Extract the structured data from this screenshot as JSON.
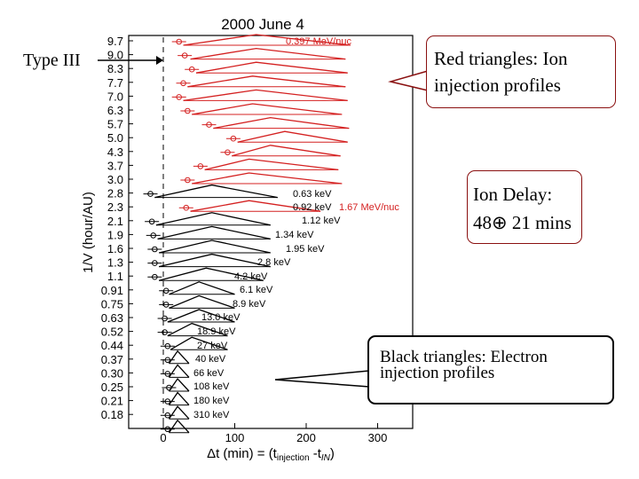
{
  "chart_data": {
    "type": "stacked-velocity-dispersion",
    "title": "2000 June 4",
    "ylabel": "1/V (hour/AU)",
    "xlabel_main": "Δt (min) = (t",
    "xlabel_sub1": "injection",
    "xlabel_mid": " -t",
    "xlabel_sub2": "IN",
    "xlabel_end": ")",
    "xlim": [
      -40,
      350
    ],
    "xticks": [
      0,
      100,
      200,
      300
    ],
    "yticks": [
      "9.7",
      "9.0",
      "8.3",
      "7.7",
      "7.0",
      "6.3",
      "5.7",
      "5.0",
      "4.3",
      "3.7",
      "3.0",
      "2.8",
      "2.3",
      "2.1",
      "1.9",
      "1.6",
      "1.3",
      "1.1",
      "0.91",
      "0.75",
      "0.63",
      "0.52",
      "0.44",
      "0.37",
      "0.30",
      "0.25",
      "0.21",
      "0.18"
    ],
    "channels": [
      {
        "type": "ion",
        "marker_x": 22,
        "triangle_start": 28,
        "peak": 130,
        "end": 262,
        "label": "0.397 MeV/nuc"
      },
      {
        "type": "ion",
        "marker_x": 30,
        "triangle_start": 38,
        "peak": 130,
        "end": 255
      },
      {
        "type": "ion",
        "marker_x": 40,
        "triangle_start": 46,
        "peak": 130,
        "end": 258
      },
      {
        "type": "ion",
        "marker_x": 28,
        "triangle_start": 34,
        "peak": 125,
        "end": 255
      },
      {
        "type": "ion",
        "marker_x": 22,
        "triangle_start": 28,
        "peak": 130,
        "end": 258
      },
      {
        "type": "ion",
        "marker_x": 34,
        "triangle_start": 40,
        "peak": 125,
        "end": 250
      },
      {
        "type": "ion",
        "marker_x": 64,
        "triangle_start": 70,
        "peak": 150,
        "end": 260
      },
      {
        "type": "ion",
        "marker_x": 98,
        "triangle_start": 104,
        "peak": 170,
        "end": 258
      },
      {
        "type": "ion",
        "marker_x": 90,
        "triangle_start": 96,
        "peak": 150,
        "end": 248
      },
      {
        "type": "ion",
        "marker_x": 52,
        "triangle_start": 58,
        "peak": 120,
        "end": 245
      },
      {
        "type": "ion",
        "marker_x": 34,
        "triangle_start": 40,
        "peak": 120,
        "end": 250
      },
      {
        "type": "electron",
        "marker_x": -18,
        "triangle_start": -12,
        "peak": 68,
        "end": 160,
        "label": "0.63 keV"
      },
      {
        "type": "ion",
        "marker_x": 32,
        "triangle_start": 38,
        "peak": 120,
        "end": 220,
        "label": "1.67 MeV/nuc"
      },
      {
        "type": "electron",
        "marker_x": -16,
        "triangle_start": -10,
        "peak": 68,
        "end": 150,
        "label": "0.92 keV"
      },
      {
        "type": "electron",
        "marker_x": -14,
        "triangle_start": -8,
        "peak": 68,
        "end": 150,
        "label": "1.12 keV"
      },
      {
        "type": "electron",
        "marker_x": -12,
        "triangle_start": -6,
        "peak": 68,
        "end": 150,
        "label": "1.34 keV"
      },
      {
        "type": "electron",
        "marker_x": -12,
        "triangle_start": -6,
        "peak": 68,
        "end": 150,
        "label": "1.95 keV"
      },
      {
        "type": "electron",
        "marker_x": -12,
        "triangle_start": -6,
        "peak": 60,
        "end": 140,
        "label": "2.8 keV"
      },
      {
        "type": "electron",
        "marker_x": 4,
        "triangle_start": 8,
        "peak": 50,
        "end": 100,
        "label": "4.2 keV"
      },
      {
        "type": "electron",
        "marker_x": 4,
        "triangle_start": 8,
        "peak": 50,
        "end": 100,
        "label": "6.1 keV"
      },
      {
        "type": "electron",
        "marker_x": 2,
        "triangle_start": 6,
        "peak": 50,
        "end": 100,
        "label": "8.9 keV"
      },
      {
        "type": "electron",
        "marker_x": 2,
        "triangle_start": 6,
        "peak": 40,
        "end": 90,
        "label": "13.0 keV"
      },
      {
        "type": "electron",
        "marker_x": 6,
        "triangle_start": 10,
        "peak": 40,
        "end": 90,
        "label": "18.9 keV"
      },
      {
        "type": "electron",
        "marker_x": 6,
        "triangle_start": 8,
        "peak": 20,
        "end": 36,
        "label": "27 keV"
      },
      {
        "type": "electron",
        "marker_x": 6,
        "triangle_start": 8,
        "peak": 20,
        "end": 36,
        "label": "40 keV"
      },
      {
        "type": "electron",
        "marker_x": 8,
        "triangle_start": 8,
        "peak": 20,
        "end": 36,
        "label": "66 keV"
      },
      {
        "type": "electron",
        "marker_x": 6,
        "triangle_start": 8,
        "peak": 20,
        "end": 36,
        "label": "108 keV"
      },
      {
        "type": "electron",
        "marker_x": 6,
        "triangle_start": 8,
        "peak": 20,
        "end": 36,
        "label": "180 keV"
      },
      {
        "type": "electron",
        "marker_x": 6,
        "triangle_start": 8,
        "peak": 20,
        "end": 36,
        "label": "310 keV"
      }
    ],
    "colors": {
      "ion": "#d42020",
      "electron": "#000000",
      "callout_red_border": "#8a1010",
      "callout_black_border": "#000000"
    }
  },
  "callouts": {
    "red_line1": "Red triangles: Ion",
    "red_line2": "injection profiles",
    "delay_line1": "Ion Delay:",
    "delay_line2": "48⊕ 21 mins",
    "black_line1": "Black triangles: Electron",
    "black_line2": "injection profiles",
    "type3": "Type III"
  }
}
